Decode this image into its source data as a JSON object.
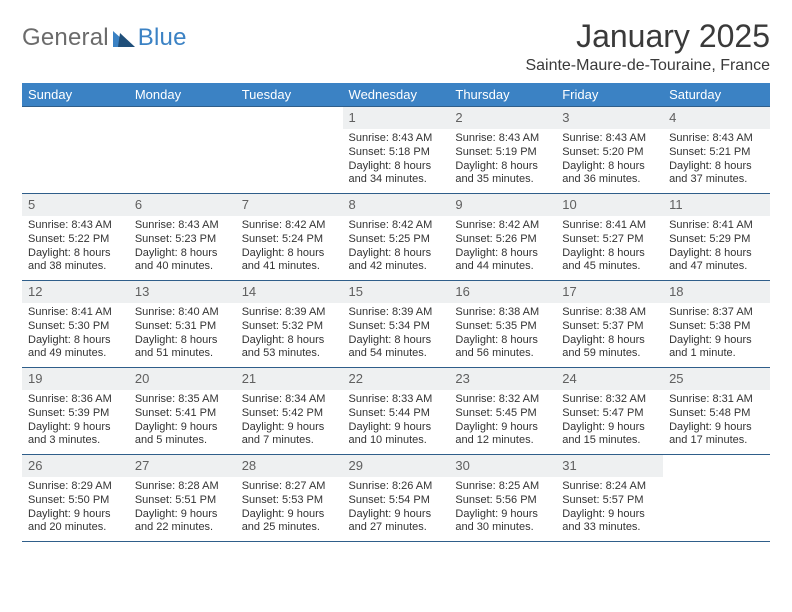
{
  "logo": {
    "part1": "General",
    "part2": "Blue"
  },
  "title": "January 2025",
  "location": "Sainte-Maure-de-Touraine, France",
  "colors": {
    "header_bg": "#3b82c4",
    "header_text": "#ffffff",
    "row_border": "#2f5e8a",
    "daynum_bg": "#eef0f1",
    "daynum_text": "#606060",
    "body_text": "#333333",
    "title_text": "#3a3a3a",
    "logo_gray": "#6b6b6b",
    "logo_blue": "#3b82c4",
    "page_bg": "#ffffff"
  },
  "fonts": {
    "month_title_pt": 32,
    "location_pt": 16,
    "weekday_pt": 13,
    "daynum_pt": 13,
    "info_pt": 11
  },
  "weekdays": [
    "Sunday",
    "Monday",
    "Tuesday",
    "Wednesday",
    "Thursday",
    "Friday",
    "Saturday"
  ],
  "weeks": [
    [
      null,
      null,
      null,
      {
        "day": "1",
        "sunrise": "Sunrise: 8:43 AM",
        "sunset": "Sunset: 5:18 PM",
        "dl1": "Daylight: 8 hours",
        "dl2": "and 34 minutes."
      },
      {
        "day": "2",
        "sunrise": "Sunrise: 8:43 AM",
        "sunset": "Sunset: 5:19 PM",
        "dl1": "Daylight: 8 hours",
        "dl2": "and 35 minutes."
      },
      {
        "day": "3",
        "sunrise": "Sunrise: 8:43 AM",
        "sunset": "Sunset: 5:20 PM",
        "dl1": "Daylight: 8 hours",
        "dl2": "and 36 minutes."
      },
      {
        "day": "4",
        "sunrise": "Sunrise: 8:43 AM",
        "sunset": "Sunset: 5:21 PM",
        "dl1": "Daylight: 8 hours",
        "dl2": "and 37 minutes."
      }
    ],
    [
      {
        "day": "5",
        "sunrise": "Sunrise: 8:43 AM",
        "sunset": "Sunset: 5:22 PM",
        "dl1": "Daylight: 8 hours",
        "dl2": "and 38 minutes."
      },
      {
        "day": "6",
        "sunrise": "Sunrise: 8:43 AM",
        "sunset": "Sunset: 5:23 PM",
        "dl1": "Daylight: 8 hours",
        "dl2": "and 40 minutes."
      },
      {
        "day": "7",
        "sunrise": "Sunrise: 8:42 AM",
        "sunset": "Sunset: 5:24 PM",
        "dl1": "Daylight: 8 hours",
        "dl2": "and 41 minutes."
      },
      {
        "day": "8",
        "sunrise": "Sunrise: 8:42 AM",
        "sunset": "Sunset: 5:25 PM",
        "dl1": "Daylight: 8 hours",
        "dl2": "and 42 minutes."
      },
      {
        "day": "9",
        "sunrise": "Sunrise: 8:42 AM",
        "sunset": "Sunset: 5:26 PM",
        "dl1": "Daylight: 8 hours",
        "dl2": "and 44 minutes."
      },
      {
        "day": "10",
        "sunrise": "Sunrise: 8:41 AM",
        "sunset": "Sunset: 5:27 PM",
        "dl1": "Daylight: 8 hours",
        "dl2": "and 45 minutes."
      },
      {
        "day": "11",
        "sunrise": "Sunrise: 8:41 AM",
        "sunset": "Sunset: 5:29 PM",
        "dl1": "Daylight: 8 hours",
        "dl2": "and 47 minutes."
      }
    ],
    [
      {
        "day": "12",
        "sunrise": "Sunrise: 8:41 AM",
        "sunset": "Sunset: 5:30 PM",
        "dl1": "Daylight: 8 hours",
        "dl2": "and 49 minutes."
      },
      {
        "day": "13",
        "sunrise": "Sunrise: 8:40 AM",
        "sunset": "Sunset: 5:31 PM",
        "dl1": "Daylight: 8 hours",
        "dl2": "and 51 minutes."
      },
      {
        "day": "14",
        "sunrise": "Sunrise: 8:39 AM",
        "sunset": "Sunset: 5:32 PM",
        "dl1": "Daylight: 8 hours",
        "dl2": "and 53 minutes."
      },
      {
        "day": "15",
        "sunrise": "Sunrise: 8:39 AM",
        "sunset": "Sunset: 5:34 PM",
        "dl1": "Daylight: 8 hours",
        "dl2": "and 54 minutes."
      },
      {
        "day": "16",
        "sunrise": "Sunrise: 8:38 AM",
        "sunset": "Sunset: 5:35 PM",
        "dl1": "Daylight: 8 hours",
        "dl2": "and 56 minutes."
      },
      {
        "day": "17",
        "sunrise": "Sunrise: 8:38 AM",
        "sunset": "Sunset: 5:37 PM",
        "dl1": "Daylight: 8 hours",
        "dl2": "and 59 minutes."
      },
      {
        "day": "18",
        "sunrise": "Sunrise: 8:37 AM",
        "sunset": "Sunset: 5:38 PM",
        "dl1": "Daylight: 9 hours",
        "dl2": "and 1 minute."
      }
    ],
    [
      {
        "day": "19",
        "sunrise": "Sunrise: 8:36 AM",
        "sunset": "Sunset: 5:39 PM",
        "dl1": "Daylight: 9 hours",
        "dl2": "and 3 minutes."
      },
      {
        "day": "20",
        "sunrise": "Sunrise: 8:35 AM",
        "sunset": "Sunset: 5:41 PM",
        "dl1": "Daylight: 9 hours",
        "dl2": "and 5 minutes."
      },
      {
        "day": "21",
        "sunrise": "Sunrise: 8:34 AM",
        "sunset": "Sunset: 5:42 PM",
        "dl1": "Daylight: 9 hours",
        "dl2": "and 7 minutes."
      },
      {
        "day": "22",
        "sunrise": "Sunrise: 8:33 AM",
        "sunset": "Sunset: 5:44 PM",
        "dl1": "Daylight: 9 hours",
        "dl2": "and 10 minutes."
      },
      {
        "day": "23",
        "sunrise": "Sunrise: 8:32 AM",
        "sunset": "Sunset: 5:45 PM",
        "dl1": "Daylight: 9 hours",
        "dl2": "and 12 minutes."
      },
      {
        "day": "24",
        "sunrise": "Sunrise: 8:32 AM",
        "sunset": "Sunset: 5:47 PM",
        "dl1": "Daylight: 9 hours",
        "dl2": "and 15 minutes."
      },
      {
        "day": "25",
        "sunrise": "Sunrise: 8:31 AM",
        "sunset": "Sunset: 5:48 PM",
        "dl1": "Daylight: 9 hours",
        "dl2": "and 17 minutes."
      }
    ],
    [
      {
        "day": "26",
        "sunrise": "Sunrise: 8:29 AM",
        "sunset": "Sunset: 5:50 PM",
        "dl1": "Daylight: 9 hours",
        "dl2": "and 20 minutes."
      },
      {
        "day": "27",
        "sunrise": "Sunrise: 8:28 AM",
        "sunset": "Sunset: 5:51 PM",
        "dl1": "Daylight: 9 hours",
        "dl2": "and 22 minutes."
      },
      {
        "day": "28",
        "sunrise": "Sunrise: 8:27 AM",
        "sunset": "Sunset: 5:53 PM",
        "dl1": "Daylight: 9 hours",
        "dl2": "and 25 minutes."
      },
      {
        "day": "29",
        "sunrise": "Sunrise: 8:26 AM",
        "sunset": "Sunset: 5:54 PM",
        "dl1": "Daylight: 9 hours",
        "dl2": "and 27 minutes."
      },
      {
        "day": "30",
        "sunrise": "Sunrise: 8:25 AM",
        "sunset": "Sunset: 5:56 PM",
        "dl1": "Daylight: 9 hours",
        "dl2": "and 30 minutes."
      },
      {
        "day": "31",
        "sunrise": "Sunrise: 8:24 AM",
        "sunset": "Sunset: 5:57 PM",
        "dl1": "Daylight: 9 hours",
        "dl2": "and 33 minutes."
      },
      null
    ]
  ]
}
